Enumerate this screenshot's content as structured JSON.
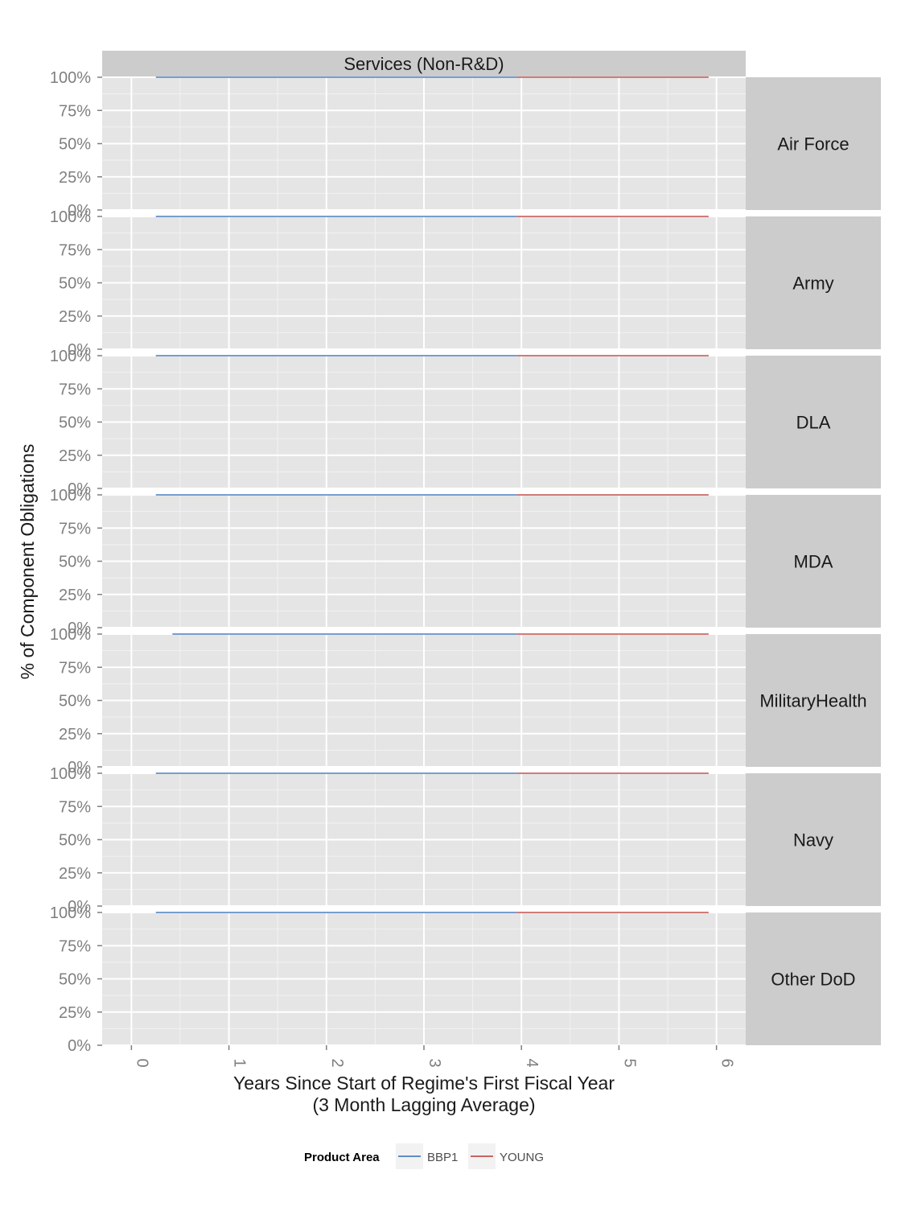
{
  "chart_data": {
    "type": "line",
    "title": "Services (Non-R&D)",
    "xlabel": "Years Since Start of Regime's First Fiscal Year",
    "xlabel_sub": "(3 Month Lagging Average)",
    "ylabel": "% of Component Obligations",
    "xlim": [
      -0.3,
      6.3
    ],
    "ylim": [
      0,
      100
    ],
    "x_ticks": [
      0,
      1,
      2,
      3,
      4,
      5,
      6
    ],
    "x_tick_labels": [
      "0",
      "1",
      "2",
      "3",
      "4",
      "5",
      "6"
    ],
    "y_ticks": [
      0,
      25,
      50,
      75,
      100
    ],
    "y_tick_labels": [
      "0%",
      "25%",
      "50%",
      "75%",
      "100%"
    ],
    "grid": true,
    "legend": {
      "title": "Product Area",
      "position": "bottom",
      "entries": [
        {
          "name": "BBP1",
          "color": "#4a7fbf"
        },
        {
          "name": "YOUNG",
          "color": "#c0504d"
        }
      ]
    },
    "panels": [
      {
        "name": "Air Force",
        "series": [
          {
            "name": "BBP1",
            "x": [
              0.25,
              3.95
            ],
            "y": [
              100,
              100
            ]
          },
          {
            "name": "YOUNG",
            "x": [
              3.95,
              5.92
            ],
            "y": [
              100,
              100
            ]
          }
        ]
      },
      {
        "name": "Army",
        "series": [
          {
            "name": "BBP1",
            "x": [
              0.25,
              3.95
            ],
            "y": [
              100,
              100
            ]
          },
          {
            "name": "YOUNG",
            "x": [
              3.95,
              5.92
            ],
            "y": [
              100,
              100
            ]
          }
        ]
      },
      {
        "name": "DLA",
        "series": [
          {
            "name": "BBP1",
            "x": [
              0.25,
              3.95
            ],
            "y": [
              100,
              100
            ]
          },
          {
            "name": "YOUNG",
            "x": [
              3.95,
              5.92
            ],
            "y": [
              100,
              100
            ]
          }
        ]
      },
      {
        "name": "MDA",
        "series": [
          {
            "name": "BBP1",
            "x": [
              0.25,
              3.95
            ],
            "y": [
              100,
              100
            ]
          },
          {
            "name": "YOUNG",
            "x": [
              3.95,
              5.92
            ],
            "y": [
              100,
              100
            ]
          }
        ]
      },
      {
        "name": "MilitaryHealth",
        "series": [
          {
            "name": "BBP1",
            "x": [
              0.42,
              3.95
            ],
            "y": [
              100,
              100
            ]
          },
          {
            "name": "YOUNG",
            "x": [
              3.95,
              5.92
            ],
            "y": [
              100,
              100
            ]
          }
        ]
      },
      {
        "name": "Navy",
        "series": [
          {
            "name": "BBP1",
            "x": [
              0.25,
              3.95
            ],
            "y": [
              100,
              100
            ]
          },
          {
            "name": "YOUNG",
            "x": [
              3.95,
              5.92
            ],
            "y": [
              100,
              100
            ]
          }
        ]
      },
      {
        "name": "Other DoD",
        "series": [
          {
            "name": "BBP1",
            "x": [
              0.25,
              3.95
            ],
            "y": [
              100,
              100
            ]
          },
          {
            "name": "YOUNG",
            "x": [
              3.95,
              5.92
            ],
            "y": [
              100,
              100
            ]
          }
        ]
      }
    ]
  }
}
